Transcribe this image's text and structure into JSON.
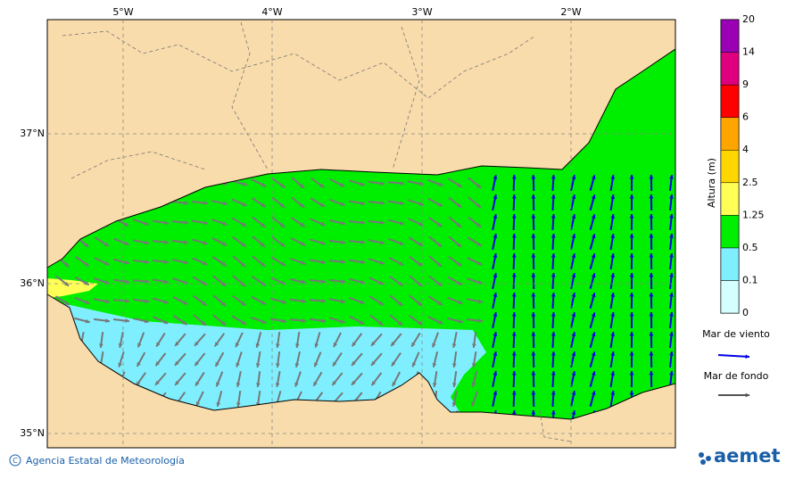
{
  "map": {
    "lon_labels": [
      "5°W",
      "4°W",
      "3°W",
      "2°W"
    ],
    "lat_labels": [
      "37°N",
      "36°N",
      "35°N"
    ],
    "colorbar": {
      "title": "Altura (m)",
      "levels": [
        0,
        0.1,
        0.5,
        1.25,
        2.5,
        4,
        6,
        9,
        14,
        20
      ],
      "colors": [
        "#d4ffff",
        "#7fefff",
        "#00ee00",
        "#ffff55",
        "#ffd700",
        "#ffa500",
        "#ff0000",
        "#e0007f",
        "#9a00b4"
      ]
    },
    "legend": [
      {
        "label": "Mar de viento",
        "color": "#0000e6"
      },
      {
        "label": "Mar de fondo",
        "color": "#555555"
      }
    ]
  },
  "footer": {
    "credit": "Agencia Estatal de Meteorología",
    "logo": "aemet"
  }
}
